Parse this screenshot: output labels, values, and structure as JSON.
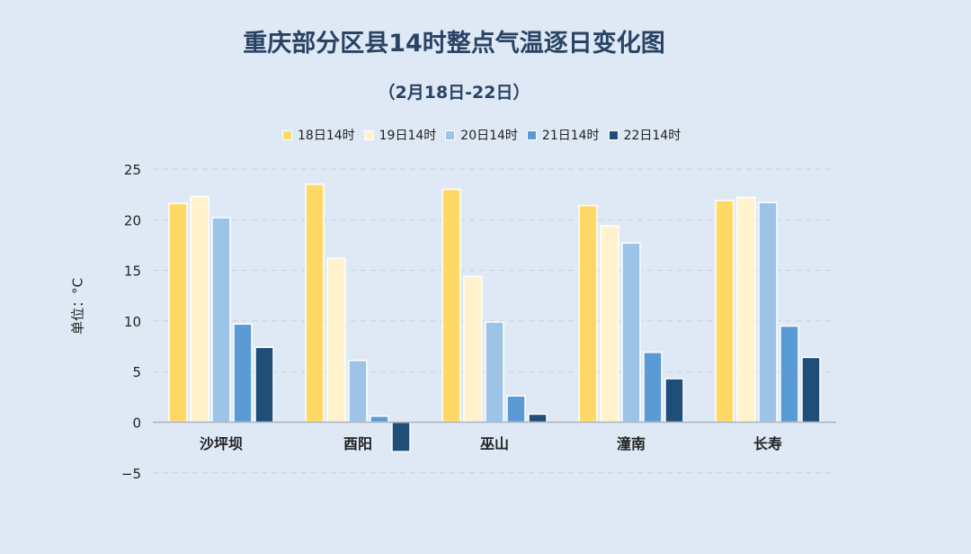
{
  "title": "重庆部分区县14时整点气温逐日变化图",
  "subtitle": "（2月18日-22日）",
  "ylabel": "单位：°C",
  "chart_data": {
    "type": "bar",
    "title": "重庆部分区县14时整点气温逐日变化图",
    "subtitle": "（2月18日-22日）",
    "xlabel": "",
    "ylabel": "单位：°C",
    "ylim": [
      -5,
      25
    ],
    "yticks": [
      25,
      20,
      15,
      10,
      5,
      0,
      -5
    ],
    "grid": true,
    "legend_position": "top",
    "categories": [
      "沙坪坝",
      "酉阳",
      "巫山",
      "潼南",
      "长寿"
    ],
    "series": [
      {
        "name": "18日14时",
        "color": "#ffd966",
        "values": [
          21.6,
          23.5,
          23.0,
          21.4,
          21.9
        ]
      },
      {
        "name": "19日14时",
        "color": "#fff2cc",
        "values": [
          22.3,
          16.2,
          14.4,
          19.4,
          22.2
        ]
      },
      {
        "name": "20日14时",
        "color": "#9dc3e6",
        "values": [
          20.2,
          6.1,
          9.9,
          17.7,
          21.7
        ]
      },
      {
        "name": "21日14时",
        "color": "#5b9bd5",
        "values": [
          9.7,
          0.6,
          2.6,
          6.9,
          9.5
        ]
      },
      {
        "name": "22日14时",
        "color": "#1f4e79",
        "values": [
          7.4,
          -2.9,
          0.8,
          4.3,
          6.4
        ]
      }
    ]
  }
}
